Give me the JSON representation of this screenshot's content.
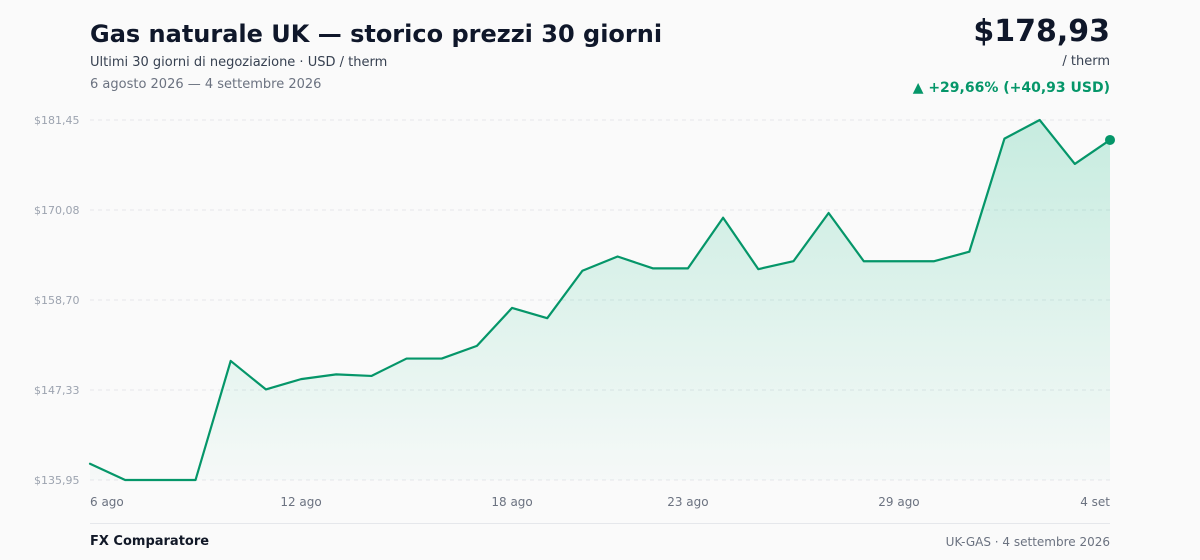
{
  "header": {
    "title": "Gas naturale UK — storico prezzi 30 giorni",
    "subtitle": "Ultimi 30 giorni di negoziazione · USD / therm",
    "date_range": "6 agosto 2026 — 4 settembre 2026"
  },
  "price": {
    "current": "$178,93",
    "unit": "/ therm",
    "change": "▲ +29,66% (+40,93 USD)"
  },
  "footer": {
    "brand": "FX Comparatore",
    "source": "UK-GAS · 4 settembre 2026"
  },
  "colors": {
    "line": "#059669",
    "area": "#10b981",
    "grid": "#e5e7eb"
  },
  "chart_data": {
    "type": "area",
    "series": [
      {
        "values": [
          138.0,
          135.95,
          135.95,
          135.95,
          151.0,
          147.4,
          148.7,
          149.3,
          149.1,
          151.3,
          151.3,
          152.9,
          157.7,
          156.4,
          162.4,
          164.2,
          162.7,
          162.7,
          169.1,
          162.6,
          163.6,
          169.7,
          163.6,
          163.6,
          163.6,
          164.8,
          179.1,
          181.45,
          175.9,
          178.93
        ]
      }
    ],
    "x_ticks": [
      {
        "index": 0,
        "label": "6 ago"
      },
      {
        "index": 6,
        "label": "12 ago"
      },
      {
        "index": 12,
        "label": "18 ago"
      },
      {
        "index": 17,
        "label": "23 ago"
      },
      {
        "index": 23,
        "label": "29 ago"
      },
      {
        "index": 29,
        "label": "4 set"
      }
    ],
    "y_ticks": [
      {
        "value": 181.45,
        "label": "$181,45"
      },
      {
        "value": 170.08,
        "label": "$170,08"
      },
      {
        "value": 158.7,
        "label": "$158,70"
      },
      {
        "value": 147.33,
        "label": "$147,33"
      },
      {
        "value": 135.95,
        "label": "$135,95"
      }
    ],
    "ylim": [
      135.95,
      181.45
    ],
    "grid": true
  }
}
